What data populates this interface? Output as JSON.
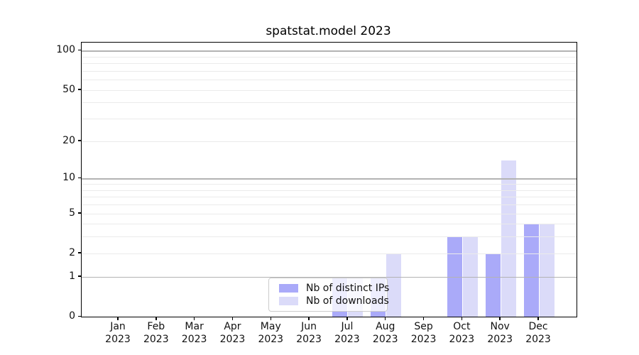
{
  "chart_data": {
    "type": "bar",
    "title": "spatstat.model 2023",
    "categories": [
      "Jan 2023",
      "Feb 2023",
      "Mar 2023",
      "Apr 2023",
      "May 2023",
      "Jun 2023",
      "Jul 2023",
      "Aug 2023",
      "Sep 2023",
      "Oct 2023",
      "Nov 2023",
      "Dec 2023"
    ],
    "series": [
      {
        "name": "Nb of distinct IPs",
        "color": "#aaaaf9",
        "values": [
          0,
          0,
          0,
          0,
          0,
          0,
          1,
          1,
          0,
          3,
          2,
          4
        ]
      },
      {
        "name": "Nb of downloads",
        "color": "#dbdbf9",
        "values": [
          0,
          0,
          0,
          0,
          0,
          0,
          1,
          2,
          0,
          3,
          14,
          4
        ]
      }
    ],
    "xlabel": "",
    "ylabel": "",
    "scale": "log1p",
    "ylim": [
      0,
      115
    ],
    "yticks": [
      0,
      1,
      2,
      5,
      10,
      20,
      50,
      100
    ],
    "grid": {
      "major": [
        1,
        10,
        100
      ],
      "minor": [
        2,
        3,
        4,
        5,
        6,
        7,
        8,
        9,
        20,
        30,
        40,
        50,
        60,
        70,
        80,
        90
      ],
      "major_color": "#b3b3b3",
      "minor_color": "#ebebeb"
    },
    "legend": {
      "position": "lower center-left",
      "entries": [
        "Nb of distinct IPs",
        "Nb of downloads"
      ]
    },
    "colors": {
      "background": "#ffffff",
      "axis": "#000000",
      "text": "#111111"
    }
  }
}
